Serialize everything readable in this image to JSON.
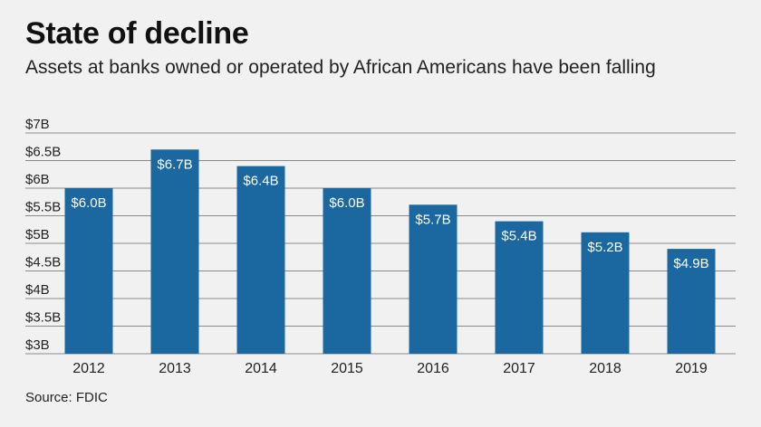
{
  "header": {
    "title": "State of decline",
    "subtitle": "Assets at banks owned or operated by African Americans have been falling"
  },
  "footer": {
    "source": "Source: FDIC"
  },
  "colors": {
    "bar": "#1b68a0",
    "grid": "#8a8a8a",
    "background": "#f0f1f0"
  },
  "chart_data": {
    "type": "bar",
    "title": "State of decline",
    "subtitle": "Assets at banks owned or operated by African Americans have been falling",
    "xlabel": "",
    "ylabel": "",
    "categories": [
      "2012",
      "2013",
      "2014",
      "2015",
      "2016",
      "2017",
      "2018",
      "2019"
    ],
    "values": [
      6.0,
      6.7,
      6.4,
      6.0,
      5.7,
      5.4,
      5.2,
      4.9
    ],
    "data_labels": [
      "$6.0B",
      "$6.7B",
      "$6.4B",
      "$6.0B",
      "$5.7B",
      "$5.4B",
      "$5.2B",
      "$4.9B"
    ],
    "ylim": [
      3,
      7
    ],
    "yticks": [
      3,
      3.5,
      4,
      4.5,
      5,
      5.5,
      6,
      6.5,
      7
    ],
    "ytick_labels": [
      "$3B",
      "$3.5B",
      "$4B",
      "$4.5B",
      "$5B",
      "$5.5B",
      "$6B",
      "$6.5B",
      "$7B"
    ],
    "grid": true,
    "legend": "none"
  }
}
